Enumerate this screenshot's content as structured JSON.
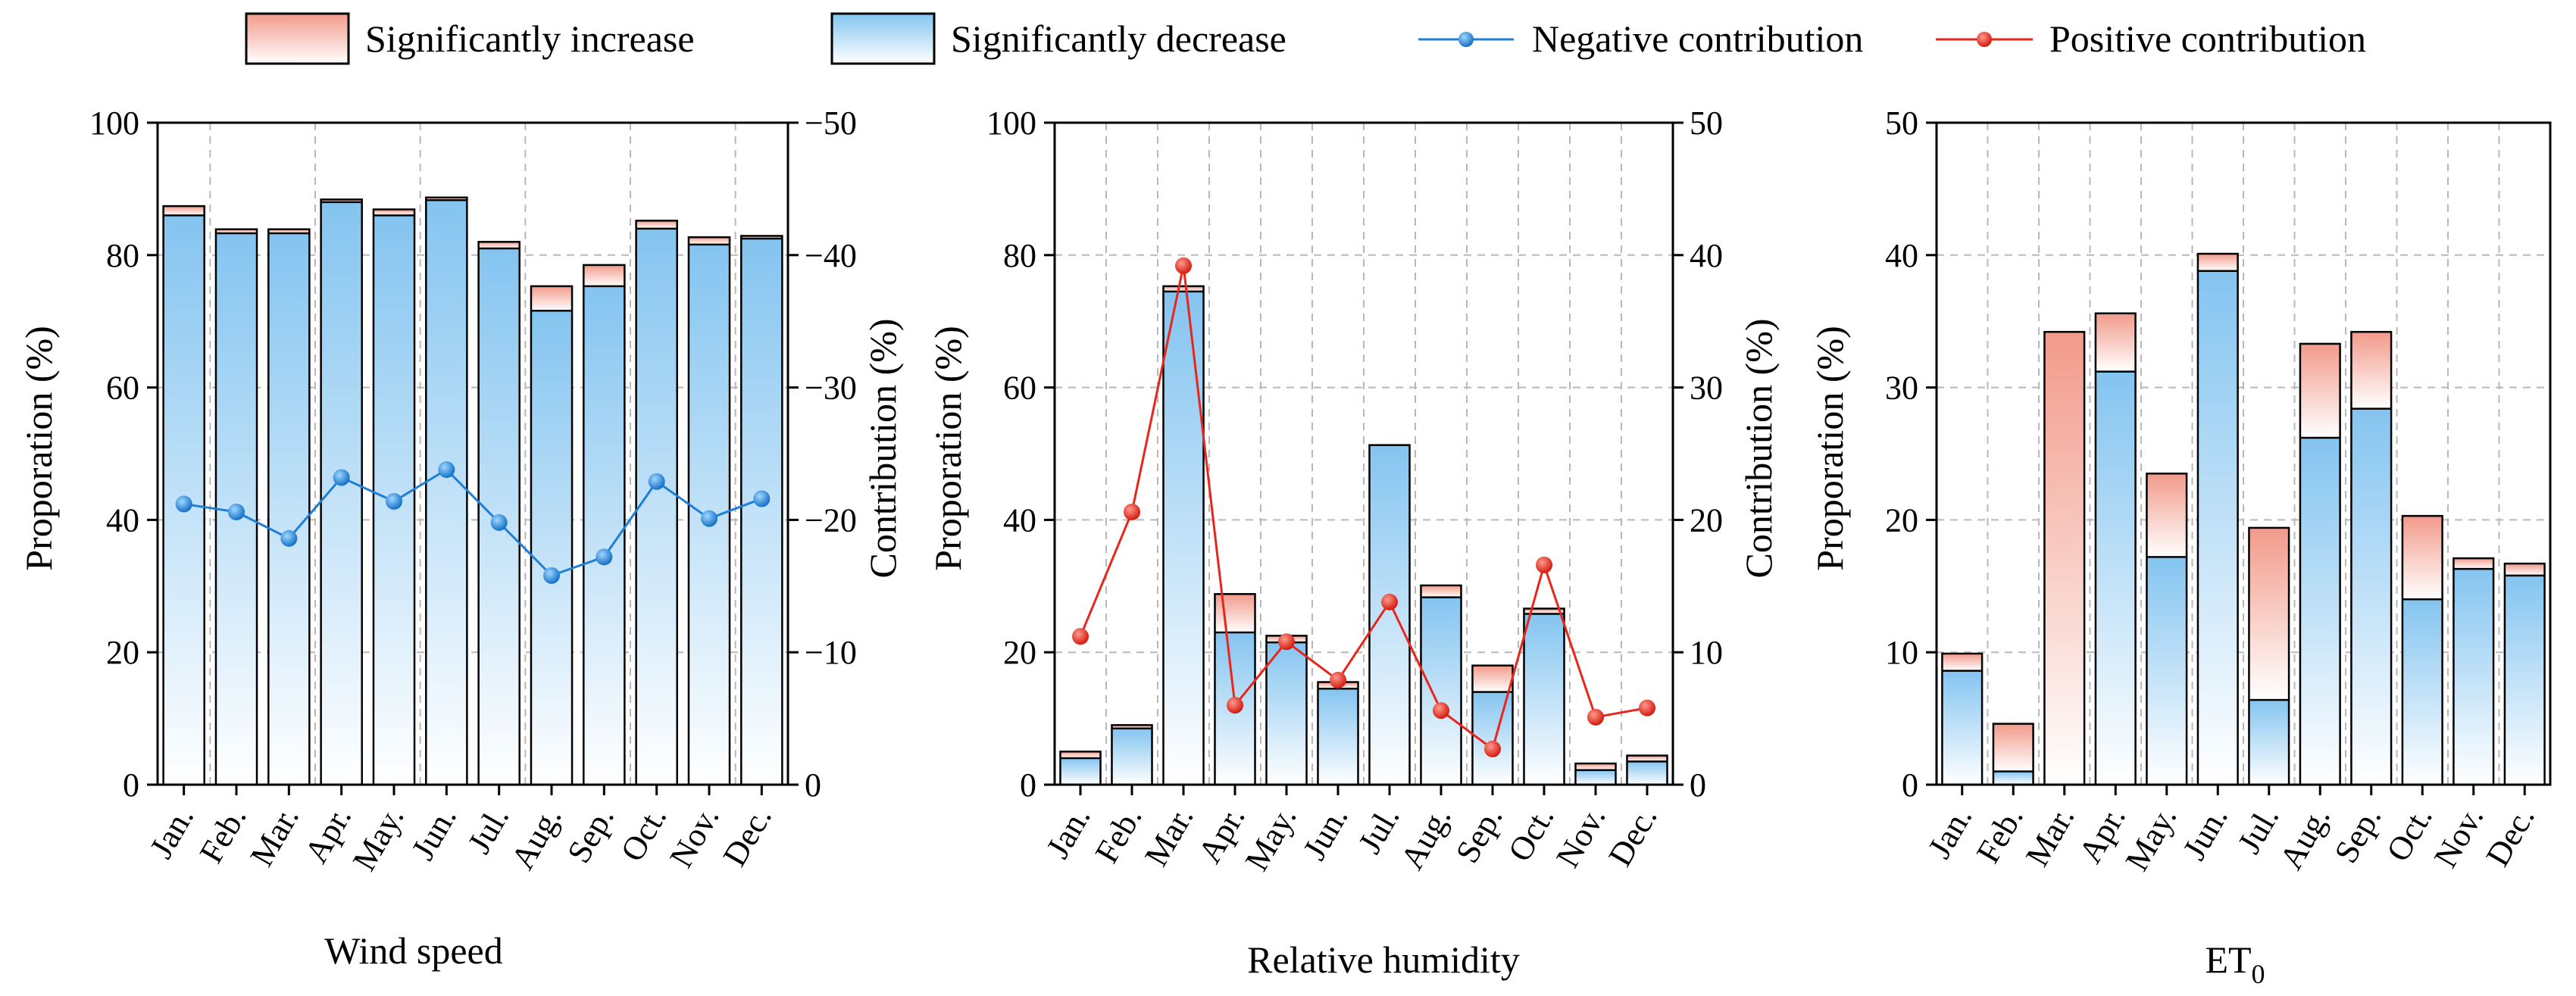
{
  "legend": {
    "inc": "Significantly increase",
    "dec": "Significantly decrease",
    "neg": "Negative contribution",
    "pos": "Positive contribution"
  },
  "colors": {
    "dec_top": "#84c4f0",
    "dec_bottom": "#ffffff",
    "inc_top": "#f29a8a",
    "inc_bottom": "#ffffff",
    "neg_line": "#1f7fd6",
    "pos_line": "#e8261b"
  },
  "chart_data": [
    {
      "type": "bar",
      "title": "",
      "xlabel": "Wind speed",
      "ylabel": "Proporation (%)",
      "y2label": "Contribution (%)",
      "ylim": [
        0,
        100
      ],
      "y2lim": [
        0,
        -50
      ],
      "yticks": [
        0,
        20,
        40,
        60,
        80,
        100
      ],
      "y2ticks": [
        0,
        -10,
        -20,
        -30,
        -40,
        -50
      ],
      "categories": [
        "Jan.",
        "Feb.",
        "Mar.",
        "Apr.",
        "May.",
        "Jun.",
        "Jul.",
        "Aug.",
        "Sep.",
        "Oct.",
        "Nov.",
        "Dec."
      ],
      "series": [
        {
          "name": "Significantly decrease",
          "kind": "bar",
          "values": [
            86,
            83.3,
            83.3,
            88,
            86,
            88.3,
            81,
            71.6,
            75.3,
            84,
            81.6,
            82.5
          ]
        },
        {
          "name": "Significantly increase",
          "kind": "bar",
          "values": [
            1.4,
            0.6,
            0.6,
            0.4,
            0.9,
            0.4,
            1.0,
            3.7,
            3.2,
            1.2,
            1.1,
            0.4
          ]
        },
        {
          "name": "Negative contribution",
          "kind": "line",
          "axis": "right",
          "values": [
            -21.2,
            -20.6,
            -18.6,
            -23.2,
            -21.4,
            -23.8,
            -19.8,
            -15.8,
            -17.2,
            -22.9,
            -20.1,
            -21.6
          ]
        }
      ]
    },
    {
      "type": "bar",
      "title": "",
      "xlabel": "Relative humidity",
      "ylabel": "Proporation (%)",
      "y2label": "Contribution (%)",
      "ylim": [
        0,
        100
      ],
      "y2lim": [
        0,
        50
      ],
      "yticks": [
        0,
        20,
        40,
        60,
        80,
        100
      ],
      "y2ticks": [
        0,
        10,
        20,
        30,
        40,
        50
      ],
      "categories": [
        "Jan.",
        "Feb.",
        "Mar.",
        "Apr.",
        "May.",
        "Jun.",
        "Jul.",
        "Aug.",
        "Sep.",
        "Oct.",
        "Nov.",
        "Dec."
      ],
      "series": [
        {
          "name": "Significantly decrease",
          "kind": "bar",
          "values": [
            4.0,
            8.5,
            74.5,
            23.0,
            21.5,
            14.5,
            51.3,
            28.3,
            14.0,
            25.8,
            2.2,
            3.5
          ]
        },
        {
          "name": "Significantly increase",
          "kind": "bar",
          "values": [
            1.0,
            0.5,
            0.8,
            5.8,
            1.0,
            1.0,
            0.0,
            1.8,
            4.0,
            0.8,
            1.0,
            0.9
          ]
        },
        {
          "name": "Positive contribution",
          "kind": "line",
          "axis": "right",
          "values": [
            11.2,
            20.6,
            39.2,
            6.0,
            10.8,
            7.9,
            13.8,
            5.6,
            2.7,
            16.6,
            5.1,
            5.8
          ]
        }
      ]
    },
    {
      "type": "bar",
      "title": "",
      "xlabel": "ET",
      "xlabel_sub": "0",
      "ylabel": "Proporation (%)",
      "ylim": [
        0,
        50
      ],
      "yticks": [
        0,
        10,
        20,
        30,
        40,
        50
      ],
      "categories": [
        "Jan.",
        "Feb.",
        "Mar.",
        "Apr.",
        "May.",
        "Jun.",
        "Jul.",
        "Aug.",
        "Sep.",
        "Oct.",
        "Nov.",
        "Dec."
      ],
      "series": [
        {
          "name": "Significantly decrease",
          "kind": "bar",
          "values": [
            8.6,
            1.0,
            0.0,
            31.2,
            17.2,
            38.8,
            6.4,
            26.2,
            28.4,
            14.0,
            16.3,
            15.8
          ]
        },
        {
          "name": "Significantly increase",
          "kind": "bar",
          "values": [
            1.3,
            3.6,
            34.2,
            4.4,
            6.3,
            1.3,
            13.0,
            7.1,
            5.8,
            6.3,
            0.8,
            0.9
          ]
        }
      ]
    }
  ]
}
